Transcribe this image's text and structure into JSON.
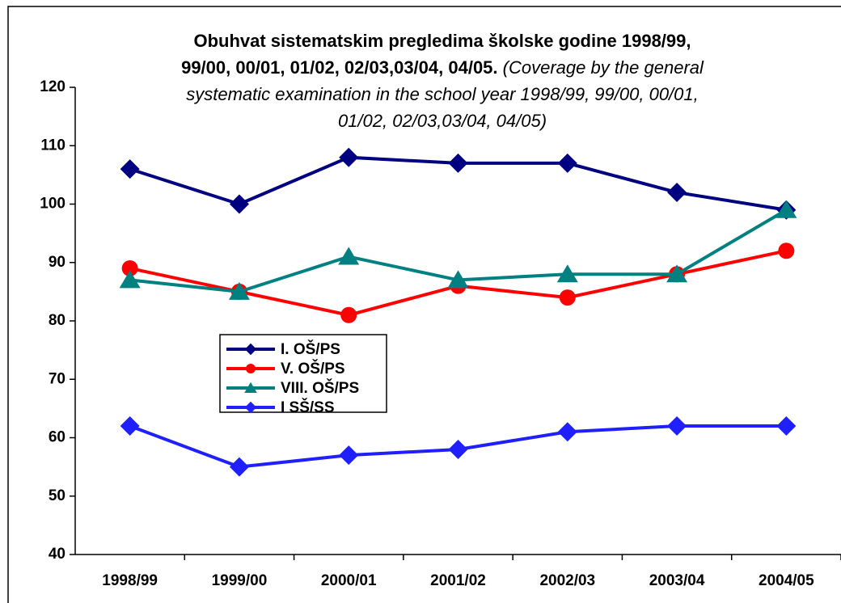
{
  "chart_data": {
    "type": "line",
    "title": "Obuhvat sistematskim pregledima školske godine 1998/99, 99/00, 00/01, 01/02, 02/03,03/04, 04/05.",
    "subtitle": "(Coverage by the general systematic examination in the school year 1998/99, 99/00, 00/01, 01/02, 02/03,03/04, 04/05)",
    "categories": [
      "1998/99",
      "1999/00",
      "2000/01",
      "2001/02",
      "2002/03",
      "2003/04",
      "2004/05"
    ],
    "series": [
      {
        "name": "I. OŠ/PS",
        "color": "#000080",
        "marker": "diamond",
        "values": [
          106,
          100,
          108,
          107,
          107,
          102,
          99
        ]
      },
      {
        "name": "V. OŠ/PS",
        "color": "#ff0000",
        "marker": "circle",
        "values": [
          89,
          85,
          81,
          86,
          84,
          88,
          92
        ]
      },
      {
        "name": "VIII. OŠ/PS",
        "color": "#008080",
        "marker": "triangle",
        "values": [
          87,
          85,
          91,
          87,
          88,
          88,
          99
        ]
      },
      {
        "name": "I SŠ/SS",
        "color": "#1f1fff",
        "marker": "diamond",
        "values": [
          62,
          55,
          57,
          58,
          61,
          62,
          62
        ]
      }
    ],
    "ylim": [
      40,
      120
    ],
    "yticks": [
      40,
      50,
      60,
      70,
      80,
      90,
      100,
      110,
      120
    ],
    "grid": false
  }
}
